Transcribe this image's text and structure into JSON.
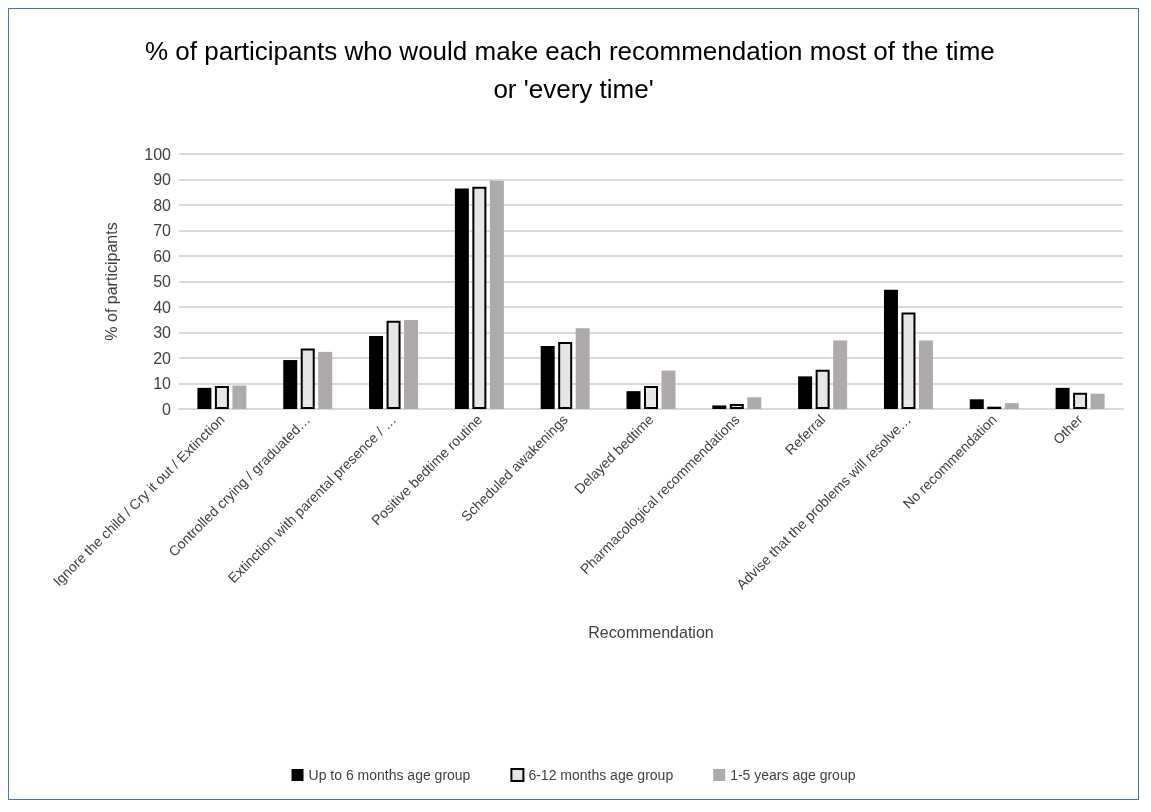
{
  "chart_data": {
    "type": "bar",
    "title": "% of participants who would make each recommendation most of the time or 'every time'",
    "xlabel": "Recommendation",
    "ylabel": "% of participants",
    "categories": [
      "Ignore the child / Cry it out / Extinction",
      "Controlled crying / graduated…",
      "Extinction with parental presence / …",
      "Positive bedtime routine",
      "Scheduled awakenings",
      "Delayed bedtime",
      "Pharmacological recommendations",
      "Referral",
      "Advise that the problems will resolve…",
      "No recommendation",
      "Other"
    ],
    "series": [
      {
        "name": "Up to 6 months age group",
        "color": "#000000",
        "values": [
          8.3,
          19.2,
          28.6,
          86.5,
          24.7,
          7.0,
          1.4,
          12.8,
          46.8,
          3.8,
          8.3
        ]
      },
      {
        "name": "6-12 months age group",
        "color": "#e6e6e6",
        "values": [
          9.0,
          23.7,
          34.6,
          87.2,
          26.3,
          9.0,
          2.0,
          15.4,
          37.8,
          0.9,
          6.4
        ]
      },
      {
        "name": "1-5 years age group",
        "color": "#aeaaaa",
        "values": [
          9.2,
          22.4,
          34.9,
          89.5,
          31.7,
          15.1,
          4.6,
          26.9,
          26.9,
          2.3,
          6.0
        ]
      }
    ],
    "ylim": [
      0,
      100
    ],
    "yticks": [
      0,
      10,
      20,
      30,
      40,
      50,
      60,
      70,
      80,
      90,
      100
    ],
    "grid": "y",
    "legend": "bottom"
  }
}
